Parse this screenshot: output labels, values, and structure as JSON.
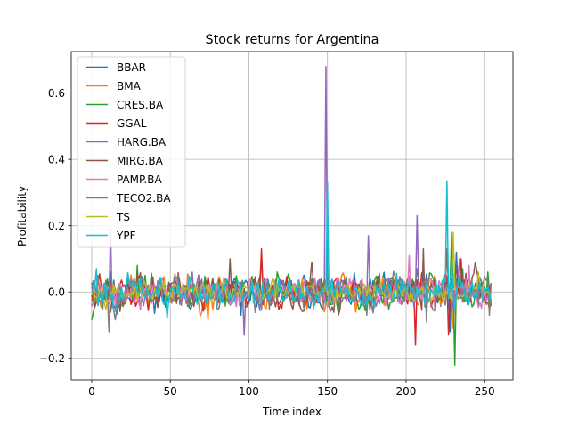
{
  "chart_data": {
    "type": "line",
    "title": "Stock returns for Argentina",
    "xlabel": "Time index",
    "ylabel": "Profitability",
    "xlim": [
      -13,
      268
    ],
    "ylim": [
      -0.265,
      0.725
    ],
    "xticks": [
      0,
      50,
      100,
      150,
      200,
      250
    ],
    "yticks": [
      -0.2,
      0.0,
      0.2,
      0.4,
      0.6
    ],
    "ytick_labels": [
      "−0.2",
      "0.0",
      "0.2",
      "0.4",
      "0.6"
    ],
    "grid": true,
    "legend_position": "top-left",
    "x_range": [
      0,
      254
    ],
    "series": [
      {
        "name": "BBAR",
        "color": "#1f77b4",
        "seed": 11,
        "amp": 0.022,
        "spikes": [
          [
            12,
            0.06
          ],
          [
            95,
            -0.07
          ],
          [
            228,
            -0.12
          ],
          [
            232,
            0.12
          ]
        ]
      },
      {
        "name": "BMA",
        "color": "#ff7f0e",
        "seed": 23,
        "amp": 0.024,
        "spikes": [
          [
            74,
            -0.085
          ],
          [
            108,
            0.11
          ],
          [
            186,
            -0.04
          ],
          [
            230,
            -0.11
          ]
        ]
      },
      {
        "name": "CRES.BA",
        "color": "#2ca02c",
        "seed": 37,
        "amp": 0.024,
        "spikes": [
          [
            0,
            -0.085
          ],
          [
            29,
            0.08
          ],
          [
            118,
            0.06
          ],
          [
            229,
            0.18
          ],
          [
            231,
            -0.22
          ],
          [
            252,
            0.06
          ]
        ]
      },
      {
        "name": "GGAL",
        "color": "#d62728",
        "seed": 41,
        "amp": 0.022,
        "spikes": [
          [
            108,
            0.13
          ],
          [
            206,
            -0.16
          ],
          [
            235,
            0.1
          ],
          [
            227,
            -0.13
          ]
        ]
      },
      {
        "name": "HARG.BA",
        "color": "#9467bd",
        "seed": 53,
        "amp": 0.021,
        "spikes": [
          [
            12,
            0.19
          ],
          [
            97,
            -0.13
          ],
          [
            149,
            0.68
          ],
          [
            176,
            0.17
          ],
          [
            207,
            0.23
          ],
          [
            234,
            0.1
          ]
        ]
      },
      {
        "name": "MIRG.BA",
        "color": "#8c564b",
        "seed": 67,
        "amp": 0.026,
        "spikes": [
          [
            88,
            0.1
          ],
          [
            140,
            0.09
          ],
          [
            211,
            0.13
          ],
          [
            226,
            0.13
          ],
          [
            244,
            0.09
          ]
        ]
      },
      {
        "name": "PAMP.BA",
        "color": "#e377c2",
        "seed": 71,
        "amp": 0.02,
        "spikes": [
          [
            202,
            0.11
          ],
          [
            240,
            0.08
          ]
        ]
      },
      {
        "name": "TECO2.BA",
        "color": "#7f7f7f",
        "seed": 83,
        "amp": 0.024,
        "spikes": [
          [
            11,
            -0.12
          ],
          [
            175,
            -0.07
          ],
          [
            213,
            -0.09
          ],
          [
            253,
            -0.07
          ]
        ]
      },
      {
        "name": "TS",
        "color": "#bcbd22",
        "seed": 97,
        "amp": 0.014,
        "spikes": [
          [
            230,
            0.18
          ],
          [
            246,
            0.06
          ]
        ]
      },
      {
        "name": "YPF",
        "color": "#17becf",
        "seed": 101,
        "amp": 0.022,
        "spikes": [
          [
            3,
            0.07
          ],
          [
            150,
            0.33
          ],
          [
            226,
            0.335
          ],
          [
            229,
            0.1
          ],
          [
            48,
            -0.08
          ]
        ]
      }
    ]
  }
}
